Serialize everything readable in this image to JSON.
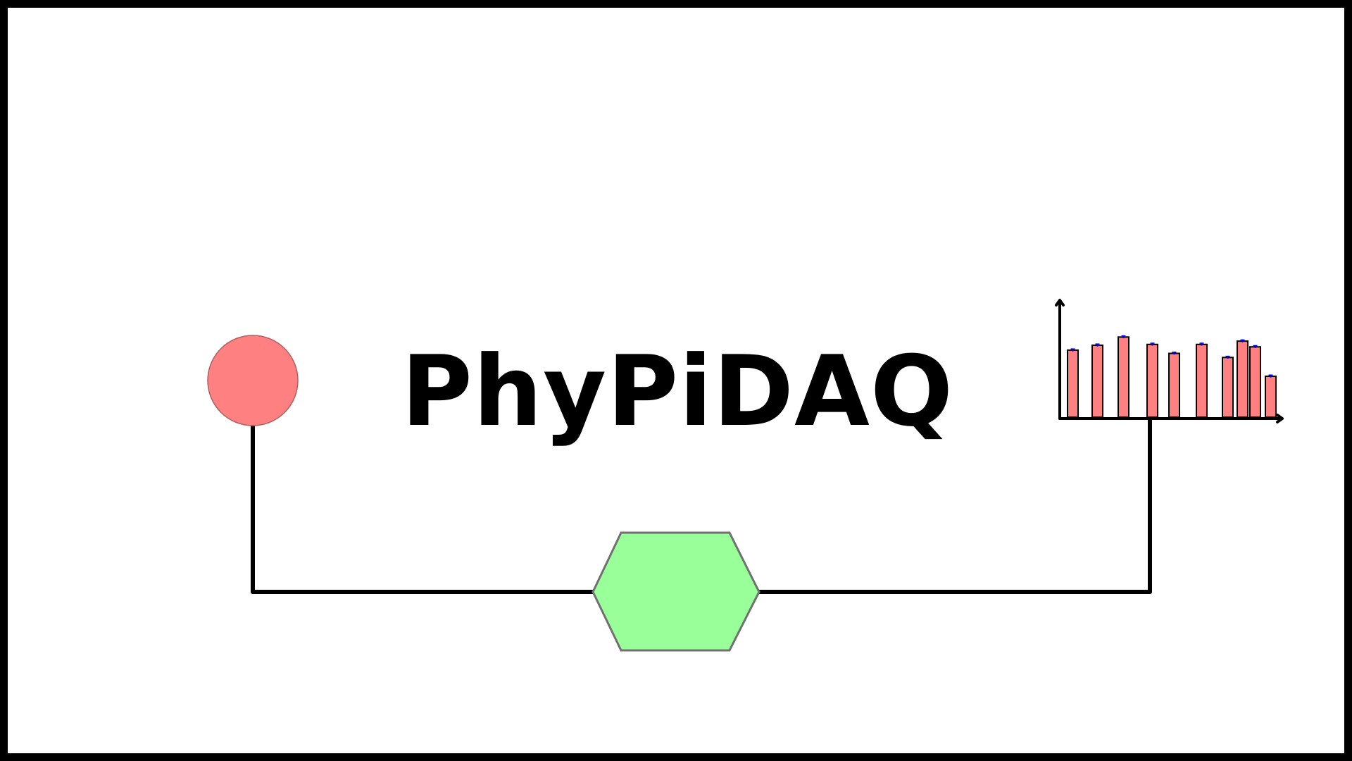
{
  "logo": {
    "title": "PhyPiDAQ"
  },
  "colors": {
    "frame": "#000000",
    "circle_fill": "#ff8080",
    "circle_stroke": "#b06060",
    "hexagon_fill": "#99ff99",
    "hexagon_stroke": "#707070",
    "wire": "#000000",
    "bar_fill": "#ff8080",
    "bar_stroke": "#000000",
    "error_bar": "#0000ff"
  },
  "icons": {
    "source": "circle-sensor-icon",
    "processor": "hexagon-processor-icon",
    "output": "histogram-chart-icon"
  },
  "chart_data": {
    "type": "bar",
    "values": [
      0.82,
      0.88,
      0.98,
      0.89,
      0.78,
      0.89,
      0.73,
      0.93,
      0.86,
      0.5
    ],
    "errors": [
      0.015,
      0.015,
      0.015,
      0.015,
      0.015,
      0.015,
      0.015,
      0.015,
      0.015,
      0.015
    ],
    "ylim": [
      0,
      1
    ],
    "grid": false,
    "title": "",
    "xlabel": "",
    "ylabel": ""
  }
}
